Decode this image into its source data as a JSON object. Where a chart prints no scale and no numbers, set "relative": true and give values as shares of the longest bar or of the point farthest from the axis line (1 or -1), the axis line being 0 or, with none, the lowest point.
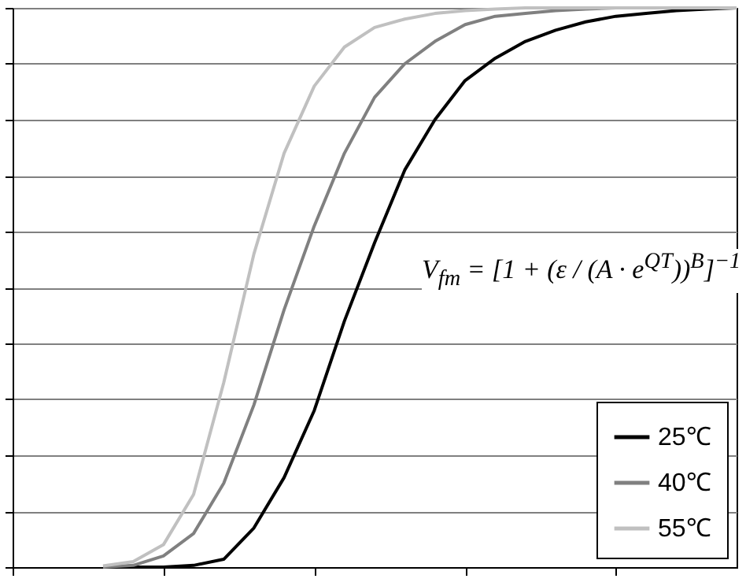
{
  "chart_data": {
    "type": "line",
    "relative": true,
    "categories": [
      null,
      null,
      null,
      null,
      null,
      null,
      null,
      null,
      null,
      null,
      null,
      null,
      null,
      null,
      null,
      null,
      null,
      null,
      null,
      null,
      null,
      null,
      null,
      null,
      null
    ],
    "series": [
      {
        "name": "25℃",
        "color": "#000000",
        "values": [
          null,
          null,
          null,
          0,
          0,
          0,
          0.003,
          0.014,
          0.07,
          0.16,
          0.28,
          0.44,
          0.58,
          0.71,
          0.8,
          0.87,
          0.91,
          0.94,
          0.96,
          0.975,
          0.985,
          0.99,
          0.995,
          0.998,
          1
        ]
      },
      {
        "name": "40℃",
        "color": "#808080",
        "values": [
          null,
          null,
          null,
          0,
          0.003,
          0.02,
          0.06,
          0.15,
          0.29,
          0.46,
          0.61,
          0.74,
          0.84,
          0.9,
          0.94,
          0.97,
          0.985,
          0.99,
          0.995,
          0.998,
          1,
          1,
          1,
          1,
          1
        ]
      },
      {
        "name": "55℃",
        "color": "#c0c0c0",
        "values": [
          null,
          null,
          null,
          0.002,
          0.01,
          0.04,
          0.13,
          0.33,
          0.56,
          0.74,
          0.86,
          0.93,
          0.965,
          0.98,
          0.99,
          0.995,
          0.998,
          1,
          1,
          1,
          1,
          1,
          1,
          1,
          1
        ]
      }
    ],
    "annotations": [
      "V$_{fm}$ = [1 + (ε / (A · e$^{QT}$))$^{B}$]$^{−1}$"
    ],
    "grid": "y",
    "legend": "bottom right",
    "marker": "none",
    "line_style": "solid"
  }
}
